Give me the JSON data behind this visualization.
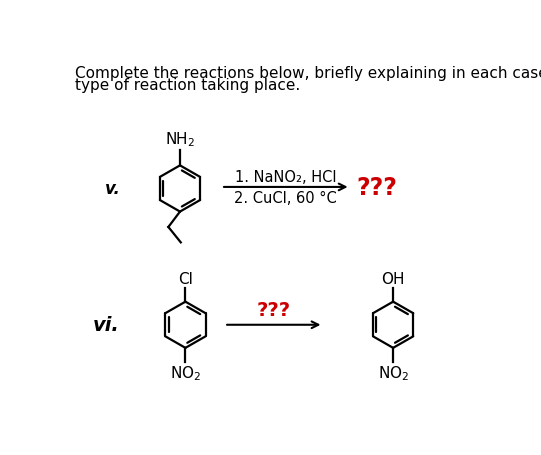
{
  "title_line1": "Complete the reactions below, briefly explaining in each case",
  "title_line2": "type of reaction taking place.",
  "label_v": "v.",
  "label_vi": "vi.",
  "reaction_v_line1": "1. NaNO₂, HCl",
  "reaction_v_line2": "2. CuCl, 60 °C",
  "question_marks": "???",
  "question_color": "#cc0000",
  "text_color": "#000000",
  "bg_color": "#ffffff",
  "title_fontsize": 11.0,
  "label_v_fontsize": 12,
  "label_vi_fontsize": 13,
  "reaction_fontsize": 10.5,
  "qmark_fontsize": 14,
  "substituent_fontsize": 11
}
